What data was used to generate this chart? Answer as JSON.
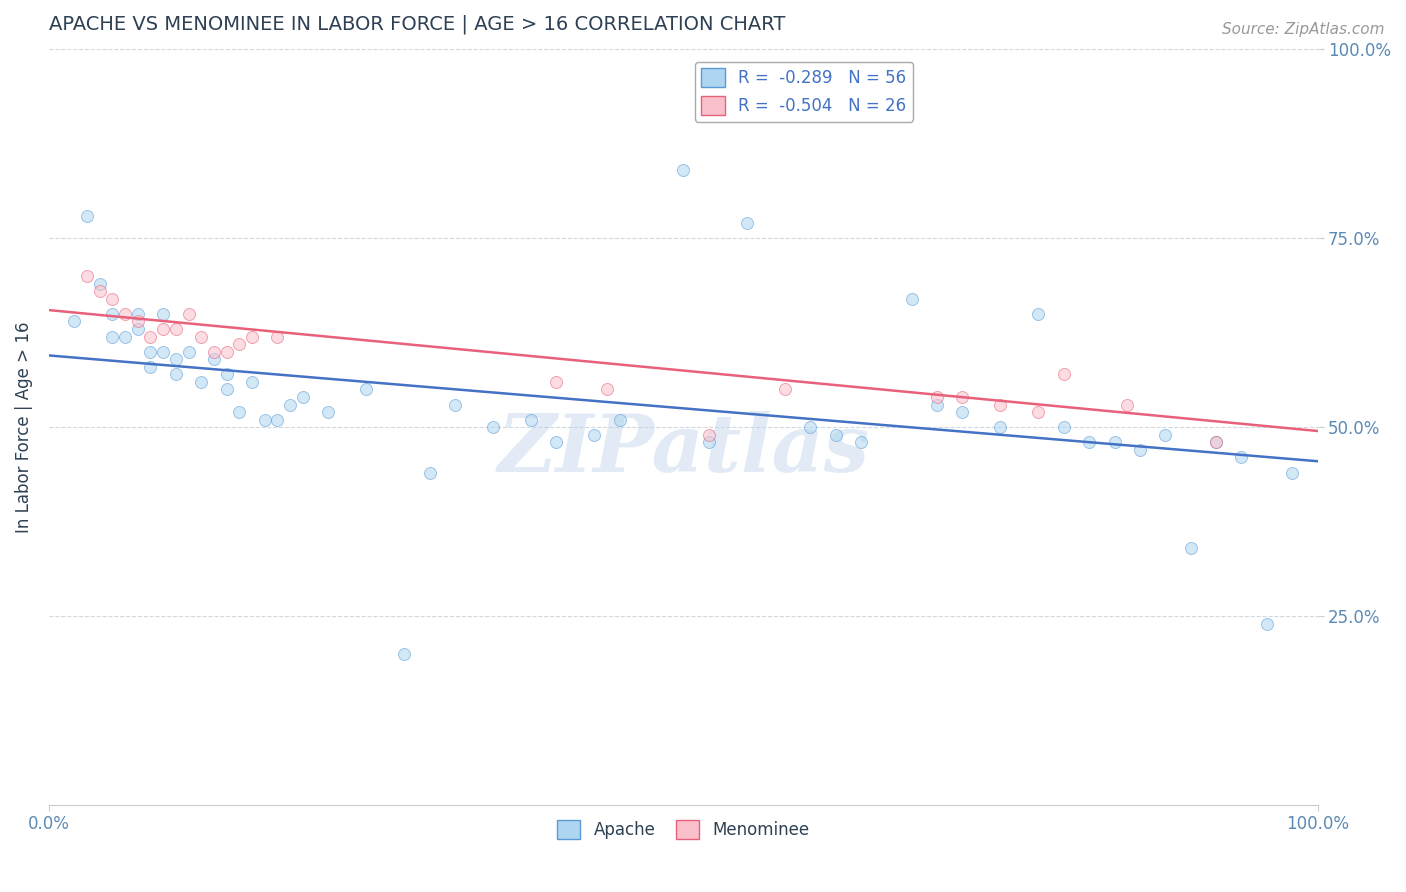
{
  "title": "APACHE VS MENOMINEE IN LABOR FORCE | AGE > 16 CORRELATION CHART",
  "source": "Source: ZipAtlas.com",
  "ylabel": "In Labor Force | Age > 16",
  "xlim": [
    0.0,
    1.0
  ],
  "ylim": [
    0.0,
    1.0
  ],
  "legend": {
    "apache": {
      "R": "-0.289",
      "N": "56",
      "face_color": "#aed6f1",
      "edge_color": "#5b9bd5",
      "line_color": "#4472c4"
    },
    "menominee": {
      "R": "-0.504",
      "N": "26",
      "face_color": "#f9c0cb",
      "edge_color": "#e8607a",
      "line_color": "#e8607a"
    }
  },
  "apache_x": [
    0.02,
    0.03,
    0.04,
    0.05,
    0.05,
    0.06,
    0.07,
    0.07,
    0.08,
    0.08,
    0.09,
    0.09,
    0.1,
    0.1,
    0.11,
    0.12,
    0.13,
    0.14,
    0.14,
    0.15,
    0.16,
    0.17,
    0.18,
    0.19,
    0.2,
    0.22,
    0.25,
    0.28,
    0.3,
    0.32,
    0.35,
    0.38,
    0.4,
    0.43,
    0.45,
    0.5,
    0.52,
    0.55,
    0.6,
    0.62,
    0.64,
    0.68,
    0.7,
    0.72,
    0.75,
    0.78,
    0.8,
    0.82,
    0.84,
    0.86,
    0.88,
    0.9,
    0.92,
    0.94,
    0.96,
    0.98
  ],
  "apache_y": [
    0.64,
    0.78,
    0.69,
    0.65,
    0.62,
    0.62,
    0.65,
    0.63,
    0.6,
    0.58,
    0.6,
    0.65,
    0.57,
    0.59,
    0.6,
    0.56,
    0.59,
    0.55,
    0.57,
    0.52,
    0.56,
    0.51,
    0.51,
    0.53,
    0.54,
    0.52,
    0.55,
    0.2,
    0.44,
    0.53,
    0.5,
    0.51,
    0.48,
    0.49,
    0.51,
    0.84,
    0.48,
    0.77,
    0.5,
    0.49,
    0.48,
    0.67,
    0.53,
    0.52,
    0.5,
    0.65,
    0.5,
    0.48,
    0.48,
    0.47,
    0.49,
    0.34,
    0.48,
    0.46,
    0.24,
    0.44
  ],
  "menominee_x": [
    0.03,
    0.04,
    0.05,
    0.06,
    0.07,
    0.08,
    0.09,
    0.1,
    0.11,
    0.12,
    0.13,
    0.14,
    0.15,
    0.16,
    0.18,
    0.4,
    0.44,
    0.52,
    0.58,
    0.7,
    0.72,
    0.75,
    0.78,
    0.8,
    0.85,
    0.92
  ],
  "menominee_y": [
    0.7,
    0.68,
    0.67,
    0.65,
    0.64,
    0.62,
    0.63,
    0.63,
    0.65,
    0.62,
    0.6,
    0.6,
    0.61,
    0.62,
    0.62,
    0.56,
    0.55,
    0.49,
    0.55,
    0.54,
    0.54,
    0.53,
    0.52,
    0.57,
    0.53,
    0.48
  ],
  "apache_line": [
    0.0,
    1.0,
    0.595,
    0.455
  ],
  "menominee_line": [
    0.0,
    1.0,
    0.655,
    0.495
  ],
  "watermark": "ZIPatlas",
  "title_color": "#2e4053",
  "source_color": "#999999",
  "grid_color": "#d0d8e0",
  "axis_color": "#cccccc",
  "background_color": "#ffffff",
  "scatter_size": 75,
  "scatter_alpha": 0.55,
  "line_width": 1.8
}
